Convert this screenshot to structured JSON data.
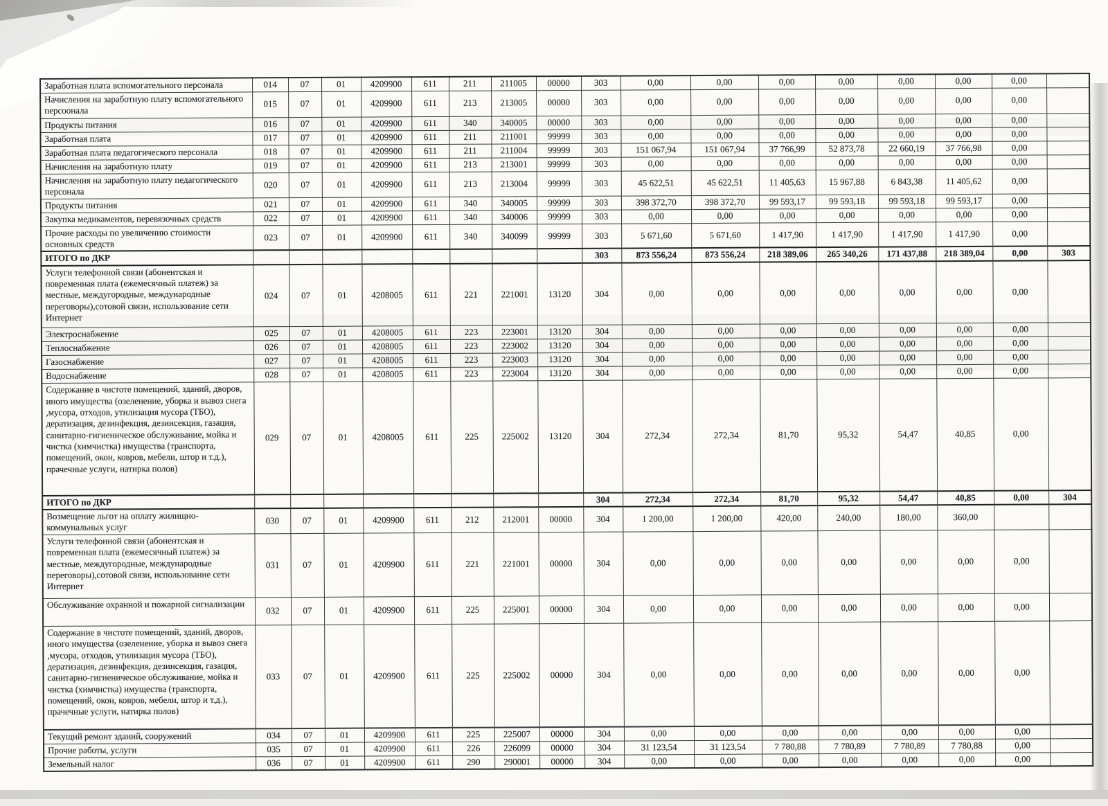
{
  "colors": {
    "paper": "#fbfaf7",
    "ink": "#26262b",
    "table_border": "#38383d",
    "scan_shadow": "#a7a6a2"
  },
  "table": {
    "rows": [
      {
        "kind": "item",
        "name": "Заработная плата вспомогательного персонала",
        "codes": [
          "014",
          "07",
          "01",
          "4209900",
          "611",
          "211",
          "211005",
          "00000",
          "303"
        ],
        "values": [
          "0,00",
          "0,00",
          "0,00",
          "0,00",
          "0,00",
          "0,00",
          "0,00"
        ],
        "tail": ""
      },
      {
        "kind": "item",
        "name": "Начисления на заработную плату вспомогательного персоонала",
        "codes": [
          "015",
          "07",
          "01",
          "4209900",
          "611",
          "213",
          "213005",
          "00000",
          "303"
        ],
        "values": [
          "0,00",
          "0,00",
          "0,00",
          "0,00",
          "0,00",
          "0,00",
          "0,00"
        ],
        "tail": ""
      },
      {
        "kind": "item",
        "name": "Продукты питания",
        "codes": [
          "016",
          "07",
          "01",
          "4209900",
          "611",
          "340",
          "340005",
          "00000",
          "303"
        ],
        "values": [
          "0,00",
          "0,00",
          "0,00",
          "0,00",
          "0,00",
          "0,00",
          "0,00"
        ],
        "tail": ""
      },
      {
        "kind": "item",
        "name": "Заработная плата",
        "codes": [
          "017",
          "07",
          "01",
          "4209900",
          "611",
          "211",
          "211001",
          "99999",
          "303"
        ],
        "values": [
          "0,00",
          "0,00",
          "0,00",
          "0,00",
          "0,00",
          "0,00",
          "0,00"
        ],
        "tail": ""
      },
      {
        "kind": "item",
        "name": "Заработная плата педагогического персонала",
        "codes": [
          "018",
          "07",
          "01",
          "4209900",
          "611",
          "211",
          "211004",
          "99999",
          "303"
        ],
        "values": [
          "151 067,94",
          "151 067,94",
          "37 766,99",
          "52 873,78",
          "22 660,19",
          "37 766,98",
          "0,00"
        ],
        "tail": ""
      },
      {
        "kind": "item",
        "name": "Начисления на заработную плату",
        "codes": [
          "019",
          "07",
          "01",
          "4209900",
          "611",
          "213",
          "213001",
          "99999",
          "303"
        ],
        "values": [
          "0,00",
          "0,00",
          "0,00",
          "0,00",
          "0,00",
          "0,00",
          "0,00"
        ],
        "tail": ""
      },
      {
        "kind": "item",
        "name": "Начисления на заработную плату педагогического персонала",
        "codes": [
          "020",
          "07",
          "01",
          "4209900",
          "611",
          "213",
          "213004",
          "99999",
          "303"
        ],
        "values": [
          "45 622,51",
          "45 622,51",
          "11 405,63",
          "15 967,88",
          "6 843,38",
          "11 405,62",
          "0,00"
        ],
        "tail": ""
      },
      {
        "kind": "item",
        "name": "Продукты питания",
        "codes": [
          "021",
          "07",
          "01",
          "4209900",
          "611",
          "340",
          "340005",
          "99999",
          "303"
        ],
        "values": [
          "398 372,70",
          "398 372,70",
          "99 593,17",
          "99 593,18",
          "99 593,18",
          "99 593,17",
          "0,00"
        ],
        "tail": ""
      },
      {
        "kind": "item",
        "name": "Закупка медикаментов, перевязочных средств",
        "codes": [
          "022",
          "07",
          "01",
          "4209900",
          "611",
          "340",
          "340006",
          "99999",
          "303"
        ],
        "values": [
          "0,00",
          "0,00",
          "0,00",
          "0,00",
          "0,00",
          "0,00",
          "0,00"
        ],
        "tail": ""
      },
      {
        "kind": "item",
        "name": "Прочие расходы по увеличению стоимости основных средств",
        "codes": [
          "023",
          "07",
          "01",
          "4209900",
          "611",
          "340",
          "340099",
          "99999",
          "303"
        ],
        "values": [
          "5 671,60",
          "5 671,60",
          "1 417,90",
          "1 417,90",
          "1 417,90",
          "1 417,90",
          "0,00"
        ],
        "tail": ""
      },
      {
        "kind": "total",
        "name": "ИТОГО по ДКР",
        "codes": [
          "",
          "",
          "",
          "",
          "",
          "",
          "",
          "",
          "303"
        ],
        "values": [
          "873 556,24",
          "873 556,24",
          "218 389,06",
          "265 340,26",
          "171 437,88",
          "218 389,04",
          "0,00"
        ],
        "tail": "303"
      },
      {
        "kind": "item",
        "name": "Услуги телефонной связи (абонентская и повременная плата (ежемесячный платеж) за местные, междугородные, международные переговоры),сотовой связи, использование сети Интернет",
        "codes": [
          "024",
          "07",
          "01",
          "4208005",
          "611",
          "221",
          "221001",
          "13120",
          "304"
        ],
        "values": [
          "0,00",
          "0,00",
          "0,00",
          "0,00",
          "0,00",
          "0,00",
          "0,00"
        ],
        "tail": ""
      },
      {
        "kind": "item",
        "name": "Электроснабжение",
        "codes": [
          "025",
          "07",
          "01",
          "4208005",
          "611",
          "223",
          "223001",
          "13120",
          "304"
        ],
        "values": [
          "0,00",
          "0,00",
          "0,00",
          "0,00",
          "0,00",
          "0,00",
          "0,00"
        ],
        "tail": ""
      },
      {
        "kind": "item",
        "name": "Теплоснабжение",
        "codes": [
          "026",
          "07",
          "01",
          "4208005",
          "611",
          "223",
          "223002",
          "13120",
          "304"
        ],
        "values": [
          "0,00",
          "0,00",
          "0,00",
          "0,00",
          "0,00",
          "0,00",
          "0,00"
        ],
        "tail": ""
      },
      {
        "kind": "item",
        "name": "Газоснабжение",
        "codes": [
          "027",
          "07",
          "01",
          "4208005",
          "611",
          "223",
          "223003",
          "13120",
          "304"
        ],
        "values": [
          "0,00",
          "0,00",
          "0,00",
          "0,00",
          "0,00",
          "0,00",
          "0,00"
        ],
        "tail": ""
      },
      {
        "kind": "item",
        "name": "Водоснабжение",
        "codes": [
          "028",
          "07",
          "01",
          "4208005",
          "611",
          "223",
          "223004",
          "13120",
          "304"
        ],
        "values": [
          "0,00",
          "0,00",
          "0,00",
          "0,00",
          "0,00",
          "0,00",
          "0,00"
        ],
        "tail": ""
      },
      {
        "kind": "item",
        "name": "Содержание в чистоте помещений, зданий, дворов, иного имущества (озеленение, уборка и вывоз снега ,мусора, отходов, утилизация мусора (ТБО), дератизация, дезинфекция, дезинсекция, газация, санитарно-гигиеническое обслуживание, мойка и чистка (химчистка) имущества (транспорта, помещений, окон, ковров, мебели, штор и т.д.), прачечные услуги, натирка полов)",
        "codes": [
          "029",
          "07",
          "01",
          "4208005",
          "611",
          "225",
          "225002",
          "13120",
          "304"
        ],
        "values": [
          "272,34",
          "272,34",
          "81,70",
          "95,32",
          "54,47",
          "40,85",
          "0,00"
        ],
        "tail": ""
      },
      {
        "kind": "total",
        "name": "ИТОГО по ДКР",
        "codes": [
          "",
          "",
          "",
          "",
          "",
          "",
          "",
          "",
          "304"
        ],
        "values": [
          "272,34",
          "272,34",
          "81,70",
          "95,32",
          "54,47",
          "40,85",
          "0,00"
        ],
        "tail": "304"
      },
      {
        "kind": "item",
        "name": "Возмещение льгот на оплату жилищно-коммунальных услуг",
        "codes": [
          "030",
          "07",
          "01",
          "4209900",
          "611",
          "212",
          "212001",
          "00000",
          "304"
        ],
        "values": [
          "1 200,00",
          "1 200,00",
          "420,00",
          "240,00",
          "180,00",
          "360,00",
          ""
        ],
        "tail": ""
      },
      {
        "kind": "item",
        "name": "Услуги телефонной связи (абонентская и повременная плата (ежемесячный платеж) за местные, междугородные, международные переговоры),сотовой связи, использование сети Интернет",
        "codes": [
          "031",
          "07",
          "01",
          "4209900",
          "611",
          "221",
          "221001",
          "00000",
          "304"
        ],
        "values": [
          "0,00",
          "0,00",
          "0,00",
          "0,00",
          "0,00",
          "0,00",
          "0,00"
        ],
        "tail": ""
      },
      {
        "kind": "item",
        "name": "Обслуживание охранной и пожарной сигнализации",
        "codes": [
          "032",
          "07",
          "01",
          "4209900",
          "611",
          "225",
          "225001",
          "00000",
          "304"
        ],
        "values": [
          "0,00",
          "0,00",
          "0,00",
          "0,00",
          "0,00",
          "0,00",
          "0,00"
        ],
        "tail": ""
      },
      {
        "kind": "item",
        "name": "Содержание в чистоте помещений, зданий, дворов, иного имущества (озеленение, уборка и вывоз снега ,мусора, отходов, утилизация мусора (ТБО), дератизация, дезинфекция, дезинсекция, газация, санитарно-гигиеническое обслуживание, мойка и чистка (химчистка) имущества (транспорта, помещений, окон, ковров, мебели, штор и т.д.), прачечные услуги, натирка полов)",
        "codes": [
          "033",
          "07",
          "01",
          "4209900",
          "611",
          "225",
          "225002",
          "00000",
          "304"
        ],
        "values": [
          "0,00",
          "0,00",
          "0,00",
          "0,00",
          "0,00",
          "0,00",
          "0,00"
        ],
        "tail": ""
      },
      {
        "kind": "item",
        "name": "Текущий ремонт зданий, сооружений",
        "codes": [
          "034",
          "07",
          "01",
          "4209900",
          "611",
          "225",
          "225007",
          "00000",
          "304"
        ],
        "values": [
          "0,00",
          "0,00",
          "0,00",
          "0,00",
          "0,00",
          "0,00",
          "0,00"
        ],
        "tail": ""
      },
      {
        "kind": "item",
        "name": "Прочие работы, услуги",
        "codes": [
          "035",
          "07",
          "01",
          "4209900",
          "611",
          "226",
          "226099",
          "00000",
          "304"
        ],
        "values": [
          "31 123,54",
          "31 123,54",
          "7 780,88",
          "7 780,89",
          "7 780,89",
          "7 780,88",
          "0,00"
        ],
        "tail": ""
      },
      {
        "kind": "item",
        "name": "Земельный налог",
        "codes": [
          "036",
          "07",
          "01",
          "4209900",
          "611",
          "290",
          "290001",
          "00000",
          "304"
        ],
        "values": [
          "0,00",
          "0,00",
          "0,00",
          "0,00",
          "0,00",
          "0,00",
          "0,00"
        ],
        "tail": ""
      }
    ]
  }
}
